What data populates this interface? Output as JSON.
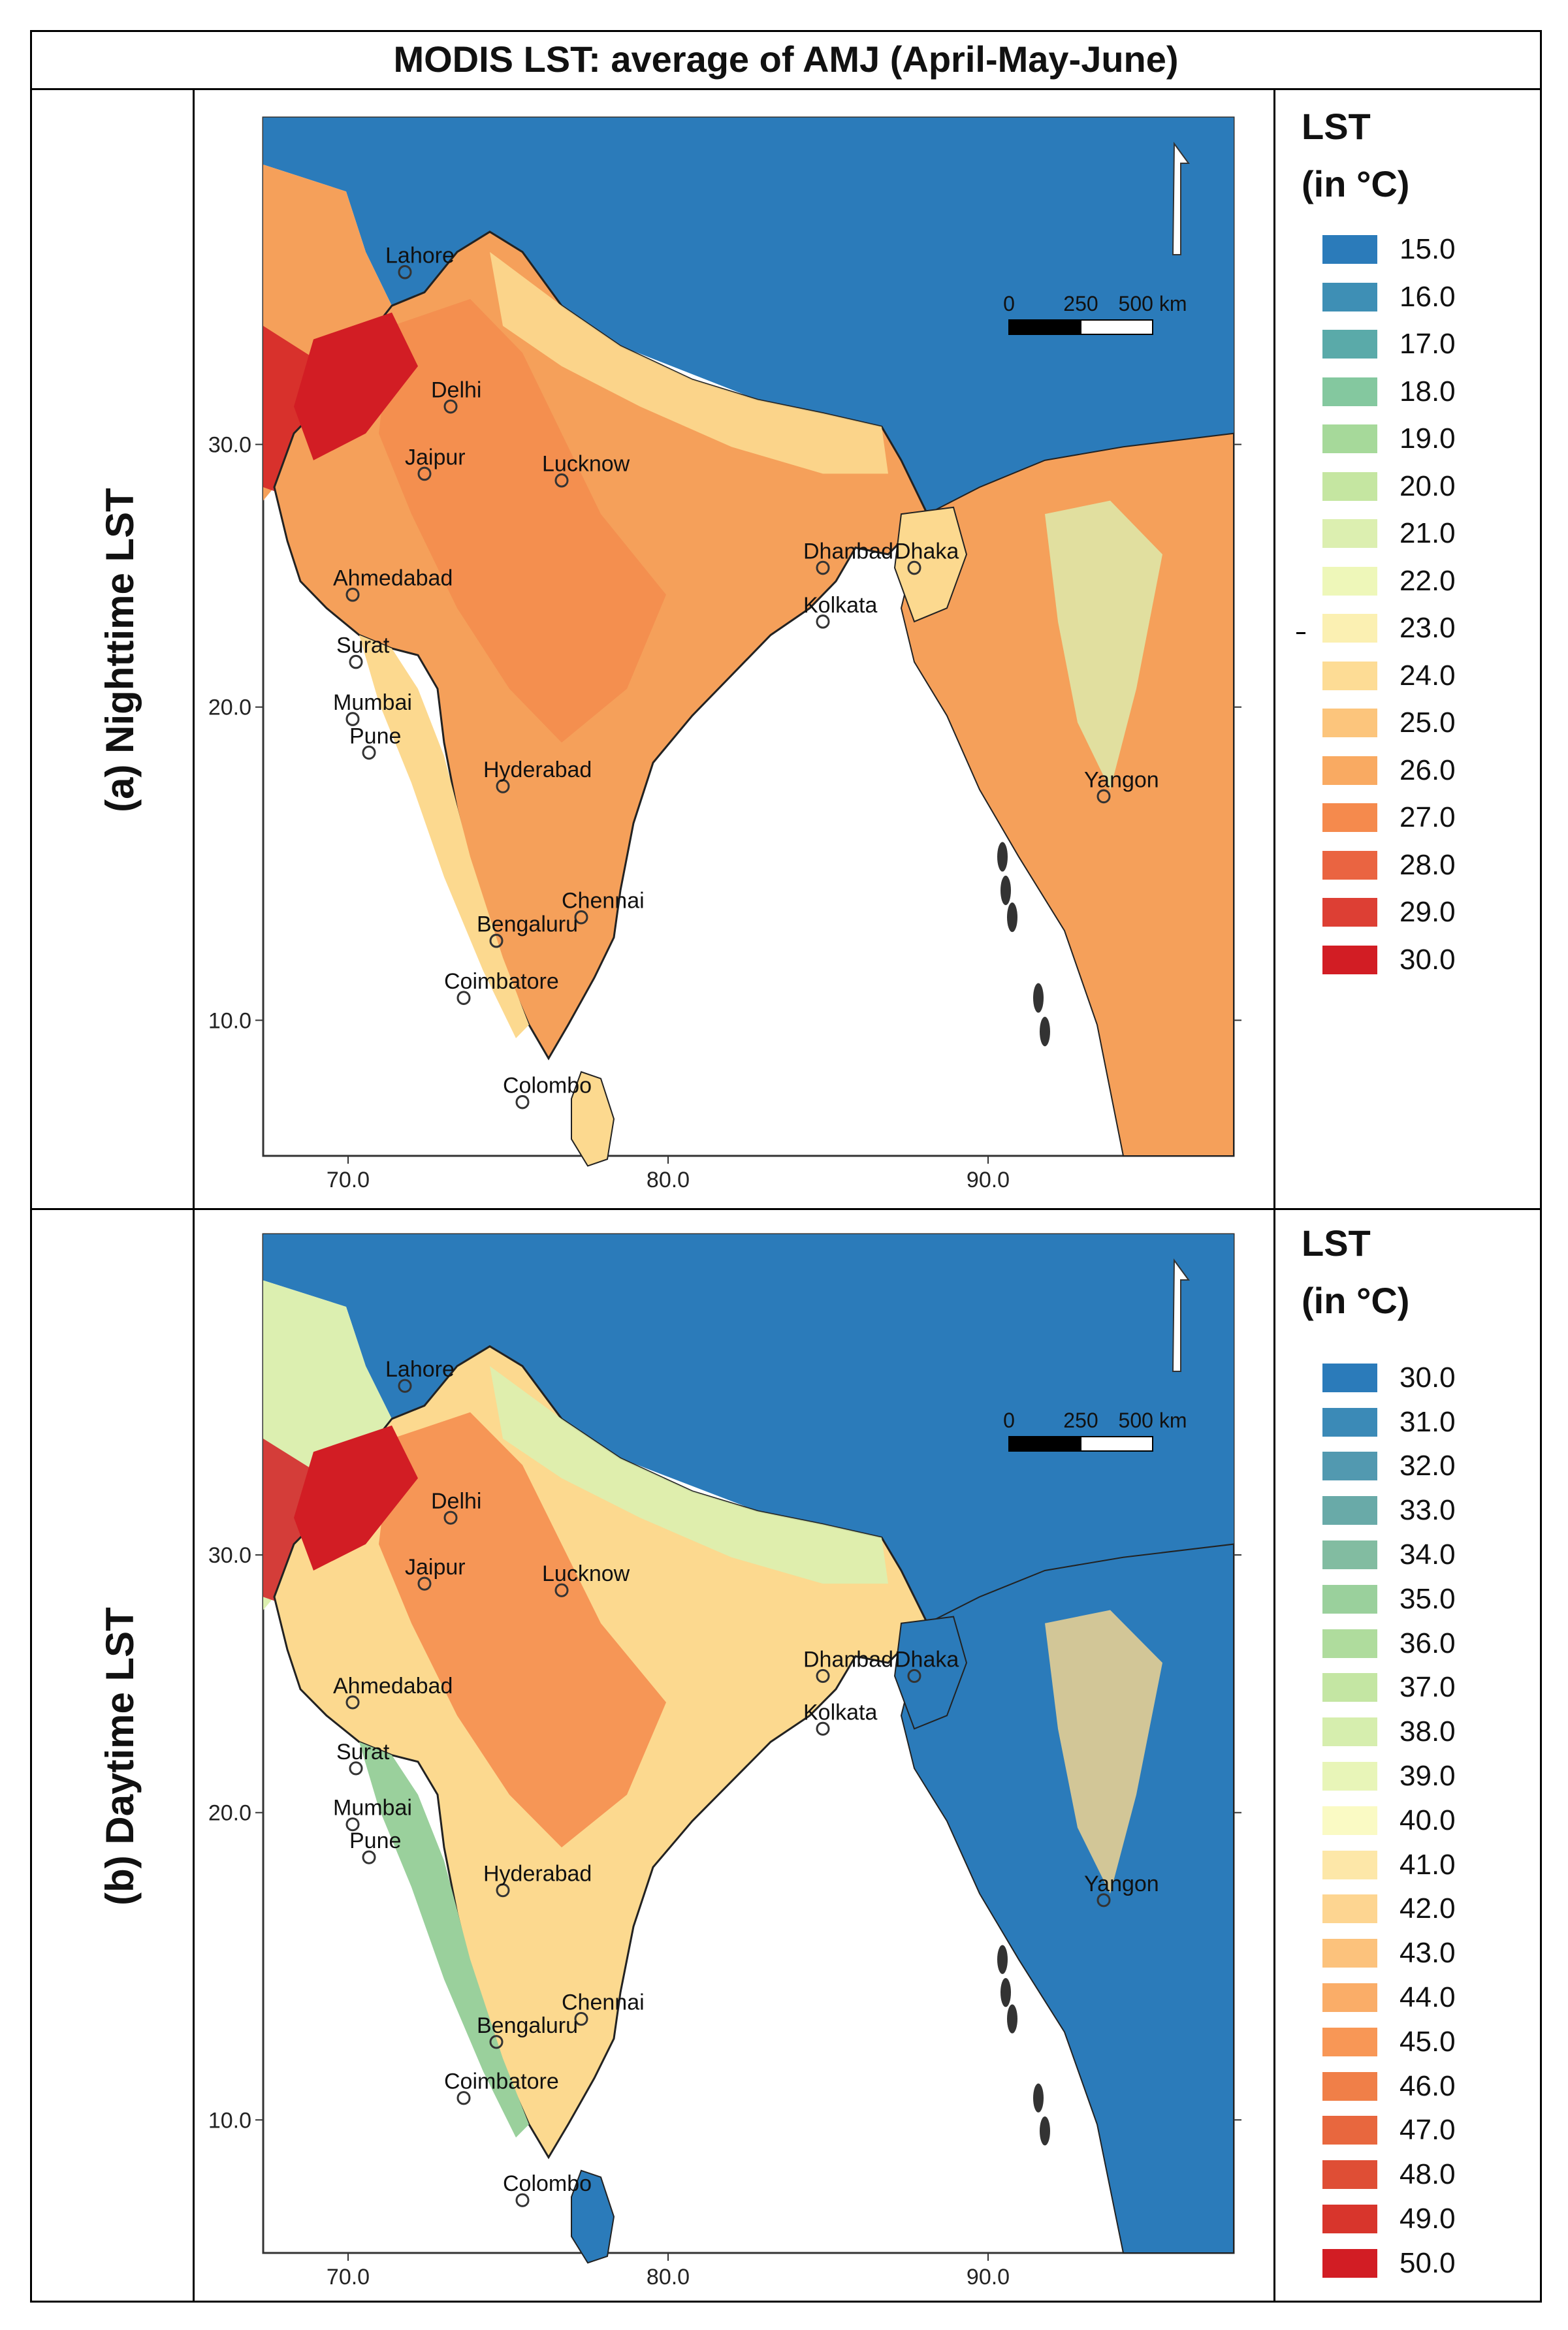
{
  "title": "MODIS LST: average of AMJ (April-May-June)",
  "panels": [
    {
      "row_label": "(a) Nighttime LST",
      "legend_title_line1": "LST",
      "legend_title_line2": "(in °C)",
      "legend": [
        {
          "label": "15.0",
          "color": "#2b7bba"
        },
        {
          "label": "16.0",
          "color": "#3e8fb5"
        },
        {
          "label": "17.0",
          "color": "#5aaaa9"
        },
        {
          "label": "18.0",
          "color": "#84c89f"
        },
        {
          "label": "19.0",
          "color": "#a6d99a"
        },
        {
          "label": "20.0",
          "color": "#c5e6a1"
        },
        {
          "label": "21.0",
          "color": "#dcefb0"
        },
        {
          "label": "22.0",
          "color": "#eef7b9"
        },
        {
          "label": "23.0",
          "color": "#fbf0b2"
        },
        {
          "label": "24.0",
          "color": "#fddc95"
        },
        {
          "label": "25.0",
          "color": "#fcc57c"
        },
        {
          "label": "26.0",
          "color": "#f9aa62"
        },
        {
          "label": "27.0",
          "color": "#f58a4d"
        },
        {
          "label": "28.0",
          "color": "#ea6441"
        },
        {
          "label": "29.0",
          "color": "#dd3f34"
        },
        {
          "label": "30.0",
          "color": "#d21d24"
        }
      ]
    },
    {
      "row_label": "(b) Daytime LST",
      "legend_title_line1": "LST",
      "legend_title_line2": "(in °C)",
      "legend": [
        {
          "label": "30.0",
          "color": "#2b7bba"
        },
        {
          "label": "31.0",
          "color": "#3b8ab7"
        },
        {
          "label": "32.0",
          "color": "#5299b0"
        },
        {
          "label": "33.0",
          "color": "#69aaa8"
        },
        {
          "label": "34.0",
          "color": "#82bca1"
        },
        {
          "label": "35.0",
          "color": "#9ad09c"
        },
        {
          "label": "36.0",
          "color": "#afdc9d"
        },
        {
          "label": "37.0",
          "color": "#c4e6a3"
        },
        {
          "label": "38.0",
          "color": "#d6eeae"
        },
        {
          "label": "39.0",
          "color": "#e8f5b8"
        },
        {
          "label": "40.0",
          "color": "#fafac4"
        },
        {
          "label": "41.0",
          "color": "#fde7a8"
        },
        {
          "label": "42.0",
          "color": "#fdd591"
        },
        {
          "label": "43.0",
          "color": "#fcc27c"
        },
        {
          "label": "44.0",
          "color": "#faad68"
        },
        {
          "label": "45.0",
          "color": "#f89756"
        },
        {
          "label": "46.0",
          "color": "#f07f48"
        },
        {
          "label": "47.0",
          "color": "#e8673e"
        },
        {
          "label": "48.0",
          "color": "#df4e35"
        },
        {
          "label": "49.0",
          "color": "#d8352c"
        },
        {
          "label": "50.0",
          "color": "#d21d24"
        }
      ]
    }
  ],
  "map": {
    "x_ticks": [
      "70.0",
      "80.0",
      "90.0"
    ],
    "y_ticks": [
      "30.0",
      "20.0",
      "10.0"
    ],
    "scale_labels": [
      "0",
      "250",
      "500 km"
    ],
    "cities": [
      "Lahore",
      "Delhi",
      "Jaipur",
      "Lucknow",
      "Ahmedabad",
      "Dhanbad",
      "Dhaka",
      "Kolkata",
      "Surat",
      "Mumbai",
      "Pune",
      "Hyderabad",
      "Yangon",
      "Chennai",
      "Bengaluru",
      "Coimbatore",
      "Colombo"
    ]
  },
  "colors": {
    "ocean": "#ffffff",
    "plateau": "#2b7bba",
    "hot": "#d21d24",
    "warm": "#f5a05a",
    "mild": "#fcd98f",
    "cool": "#dcefb0",
    "green": "#9ad09c"
  }
}
